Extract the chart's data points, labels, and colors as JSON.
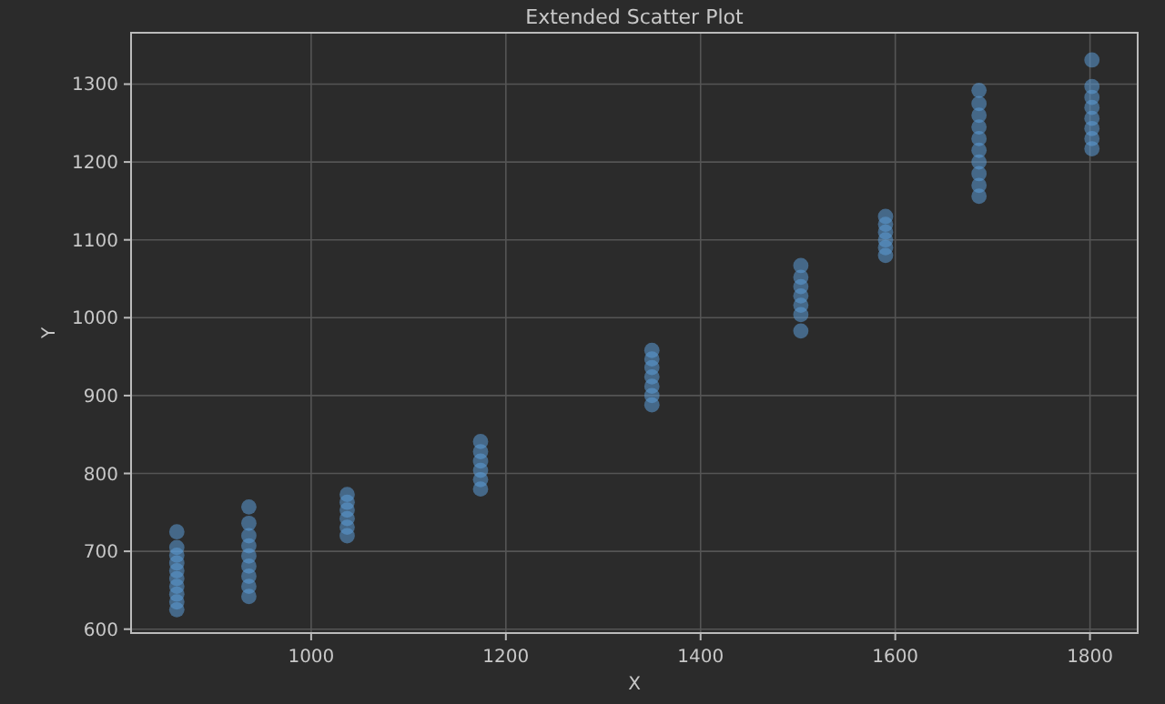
{
  "chart_data": {
    "type": "scatter",
    "title": "Extended Scatter Plot",
    "xlabel": "X",
    "ylabel": "Y",
    "xlim": [
      815,
      1849
    ],
    "ylim": [
      595,
      1366
    ],
    "xticks": [
      1000,
      1200,
      1400,
      1600,
      1800
    ],
    "yticks": [
      600,
      700,
      800,
      900,
      1000,
      1100,
      1200,
      1300
    ],
    "grid": true,
    "marker": "circle",
    "series": [
      {
        "color": "#5b9bd5",
        "x": [
          862,
          862,
          862,
          862,
          862,
          862,
          862,
          862,
          862,
          862,
          936,
          936,
          936,
          936,
          936,
          936,
          936,
          936,
          936,
          1037,
          1037,
          1037,
          1037,
          1037,
          1037,
          1174,
          1174,
          1174,
          1174,
          1174,
          1174,
          1350,
          1350,
          1350,
          1350,
          1350,
          1350,
          1350,
          1503,
          1503,
          1503,
          1503,
          1503,
          1503,
          1503,
          1590,
          1590,
          1590,
          1590,
          1590,
          1590,
          1686,
          1686,
          1686,
          1686,
          1686,
          1686,
          1686,
          1686,
          1686,
          1686,
          1802,
          1802,
          1802,
          1802,
          1802,
          1802,
          1802,
          1802
        ],
        "values": [
          625,
          635,
          645,
          655,
          665,
          675,
          685,
          695,
          705,
          725,
          642,
          655,
          668,
          681,
          694,
          707,
          720,
          736,
          757,
          720,
          731,
          742,
          753,
          763,
          773,
          780,
          792,
          804,
          816,
          828,
          841,
          888,
          900,
          912,
          924,
          936,
          947,
          958,
          983,
          1004,
          1016,
          1028,
          1040,
          1052,
          1067,
          1080,
          1090,
          1100,
          1110,
          1120,
          1130,
          1156,
          1170,
          1185,
          1200,
          1215,
          1230,
          1245,
          1260,
          1275,
          1292,
          1217,
          1230,
          1243,
          1256,
          1270,
          1283,
          1297,
          1331
        ]
      }
    ]
  }
}
